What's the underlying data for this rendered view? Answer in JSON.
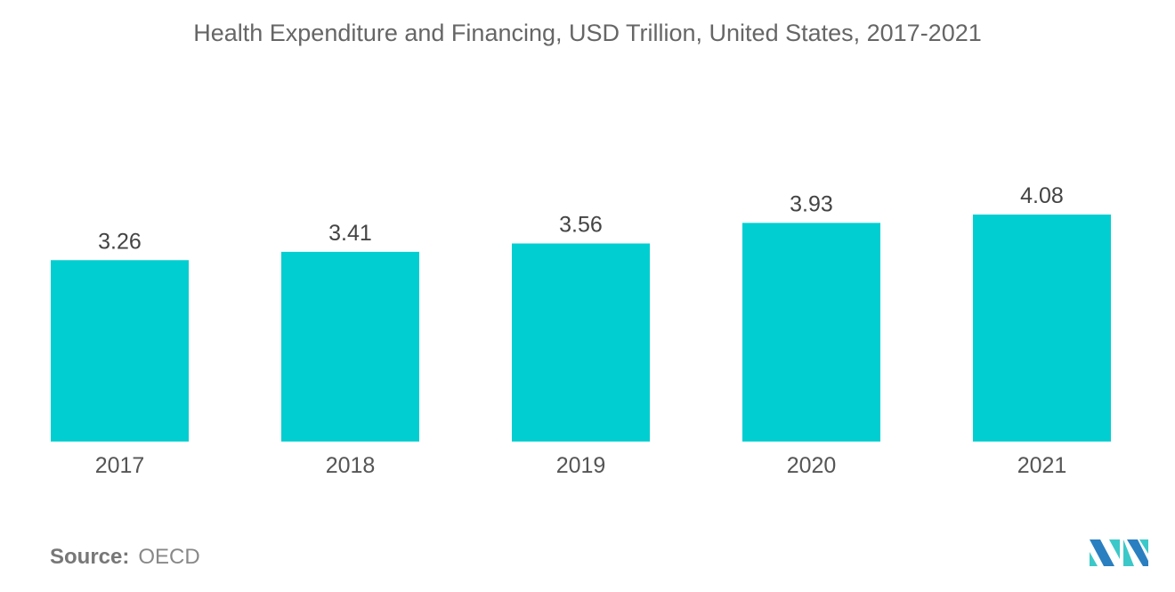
{
  "chart_data": {
    "type": "bar",
    "title": "Health Expenditure and Financing, USD Trillion, United States, 2017-2021",
    "categories": [
      "2017",
      "2018",
      "2019",
      "2020",
      "2021"
    ],
    "values": [
      3.26,
      3.41,
      3.56,
      3.93,
      4.08
    ],
    "xlabel": "",
    "ylabel": "",
    "ylim": [
      0,
      4.08
    ],
    "grid": false,
    "bar_color": "#00CED1"
  },
  "source": {
    "label": "Source:",
    "value": "OECD"
  },
  "logo": {
    "colors": [
      "#2A7FC0",
      "#3CC8C8"
    ]
  }
}
